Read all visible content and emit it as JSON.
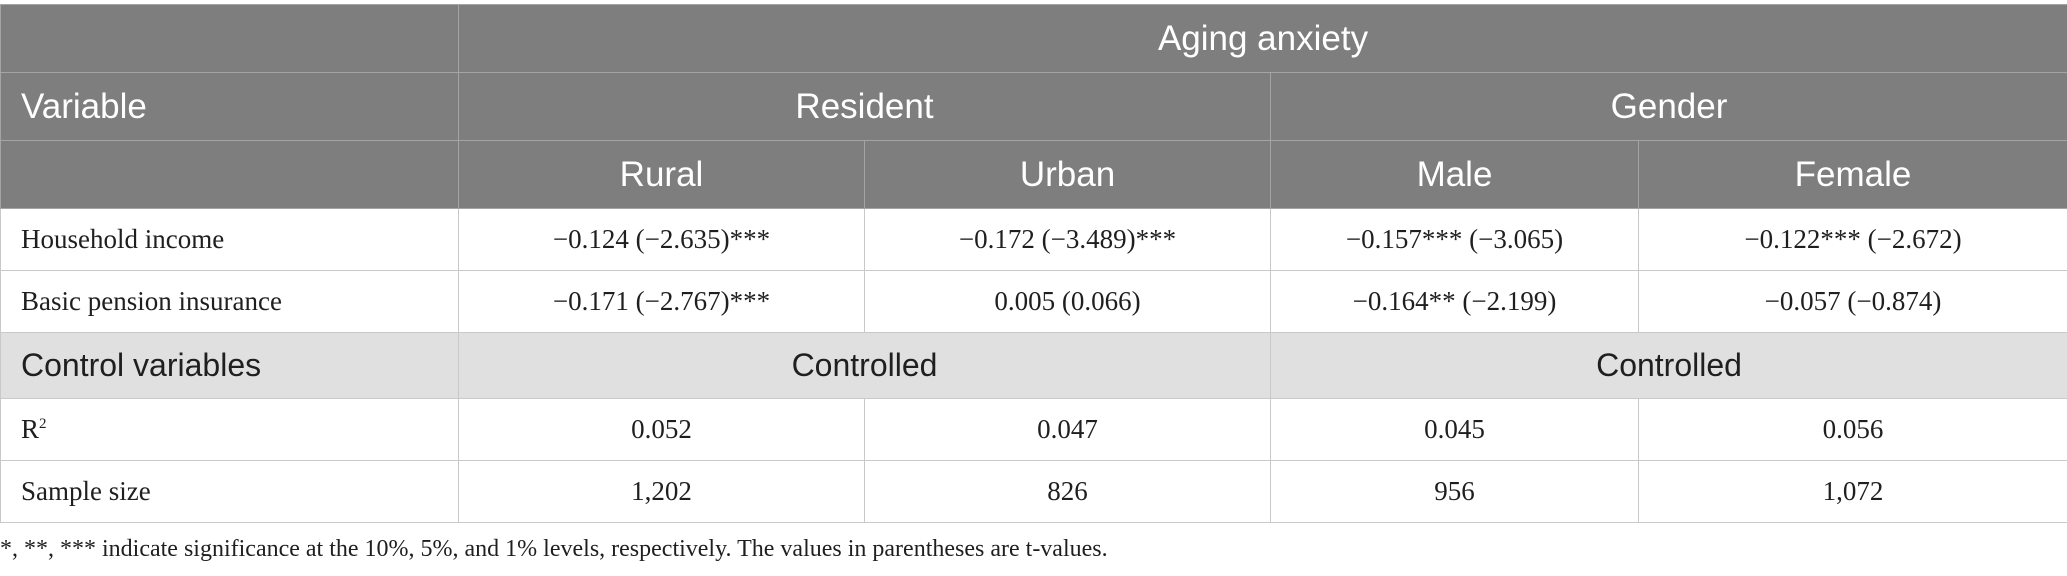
{
  "header": {
    "top_span": "Aging anxiety",
    "variable_label": "Variable",
    "group_resident": "Resident",
    "group_gender": "Gender",
    "sub_rural": "Rural",
    "sub_urban": "Urban",
    "sub_male": "Male",
    "sub_female": "Female"
  },
  "rows": {
    "household_income": {
      "label": "Household income",
      "rural": "−0.124 (−2.635)***",
      "urban": "−0.172 (−3.489)***",
      "male": "−0.157*** (−3.065)",
      "female": "−0.122*** (−2.672)"
    },
    "basic_pension": {
      "label": "Basic pension insurance",
      "rural": "−0.171 (−2.767)***",
      "urban": "0.005 (0.066)",
      "male": "−0.164** (−2.199)",
      "female": "−0.057 (−0.874)"
    },
    "control": {
      "label": "Control variables",
      "resident": "Controlled",
      "gender": "Controlled"
    },
    "r2": {
      "label_base": "R",
      "label_sup": "2",
      "rural": "0.052",
      "urban": "0.047",
      "male": "0.045",
      "female": "0.056"
    },
    "sample": {
      "label": "Sample size",
      "rural": "1,202",
      "urban": "826",
      "male": "956",
      "female": "1,072"
    }
  },
  "footnote": "*, **, *** indicate significance at the 10%, 5%, and 1% levels, respectively. The values in parentheses are t-values."
}
